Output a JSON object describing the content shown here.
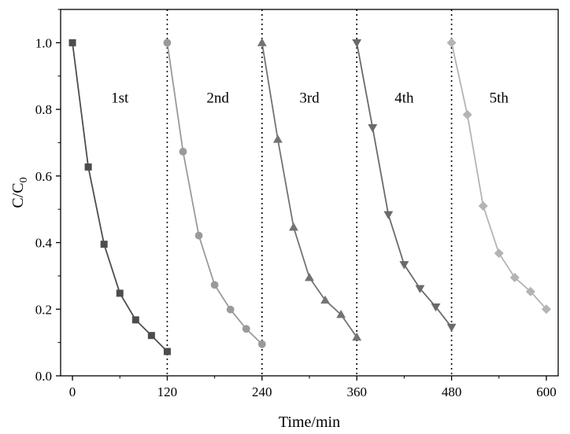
{
  "chart_data": {
    "type": "line",
    "title": "",
    "xlabel": "Time/min",
    "ylabel": "C/C",
    "ylabel_subscript": "0",
    "xlim": [
      -15,
      615
    ],
    "ylim": [
      0,
      1.1
    ],
    "x_ticks": [
      0,
      120,
      240,
      360,
      480,
      600
    ],
    "x_tick_labels": [
      "0",
      "120",
      "240",
      "360",
      "480",
      "600"
    ],
    "y_ticks": [
      0.0,
      0.2,
      0.4,
      0.6,
      0.8,
      1.0
    ],
    "y_tick_labels": [
      "0.0",
      "0.2",
      "0.4",
      "0.6",
      "0.8",
      "1.0"
    ],
    "grid": false,
    "dividers_x": [
      120,
      240,
      360,
      480
    ],
    "cycle_labels": [
      {
        "text": "1st",
        "x": 60,
        "y": 0.82
      },
      {
        "text": "2nd",
        "x": 184,
        "y": 0.82
      },
      {
        "text": "3rd",
        "x": 300,
        "y": 0.82
      },
      {
        "text": "4th",
        "x": 420,
        "y": 0.82
      },
      {
        "text": "5th",
        "x": 540,
        "y": 0.82
      }
    ],
    "series": [
      {
        "marker": "square",
        "color": "#4d4d4d",
        "x": [
          0,
          20,
          40,
          60,
          80,
          100,
          120
        ],
        "y": [
          1.0,
          0.627,
          0.395,
          0.248,
          0.168,
          0.121,
          0.073
        ]
      },
      {
        "marker": "circle",
        "color": "#9a9a9a",
        "x": [
          120,
          140,
          160,
          180,
          200,
          220,
          240
        ],
        "y": [
          1.0,
          0.673,
          0.421,
          0.273,
          0.199,
          0.141,
          0.095
        ]
      },
      {
        "marker": "triangle-up",
        "color": "#737373",
        "x": [
          240,
          260,
          280,
          300,
          320,
          340,
          360
        ],
        "y": [
          1.0,
          0.71,
          0.446,
          0.295,
          0.227,
          0.184,
          0.116
        ]
      },
      {
        "marker": "triangle-down",
        "color": "#6a6a6a",
        "x": [
          360,
          380,
          400,
          420,
          440,
          460,
          480
        ],
        "y": [
          1.0,
          0.745,
          0.484,
          0.334,
          0.262,
          0.207,
          0.146
        ]
      },
      {
        "marker": "diamond",
        "color": "#b4b4b4",
        "x": [
          480,
          500,
          520,
          540,
          560,
          580,
          600
        ],
        "y": [
          1.0,
          0.784,
          0.51,
          0.368,
          0.295,
          0.253,
          0.2
        ]
      }
    ]
  }
}
